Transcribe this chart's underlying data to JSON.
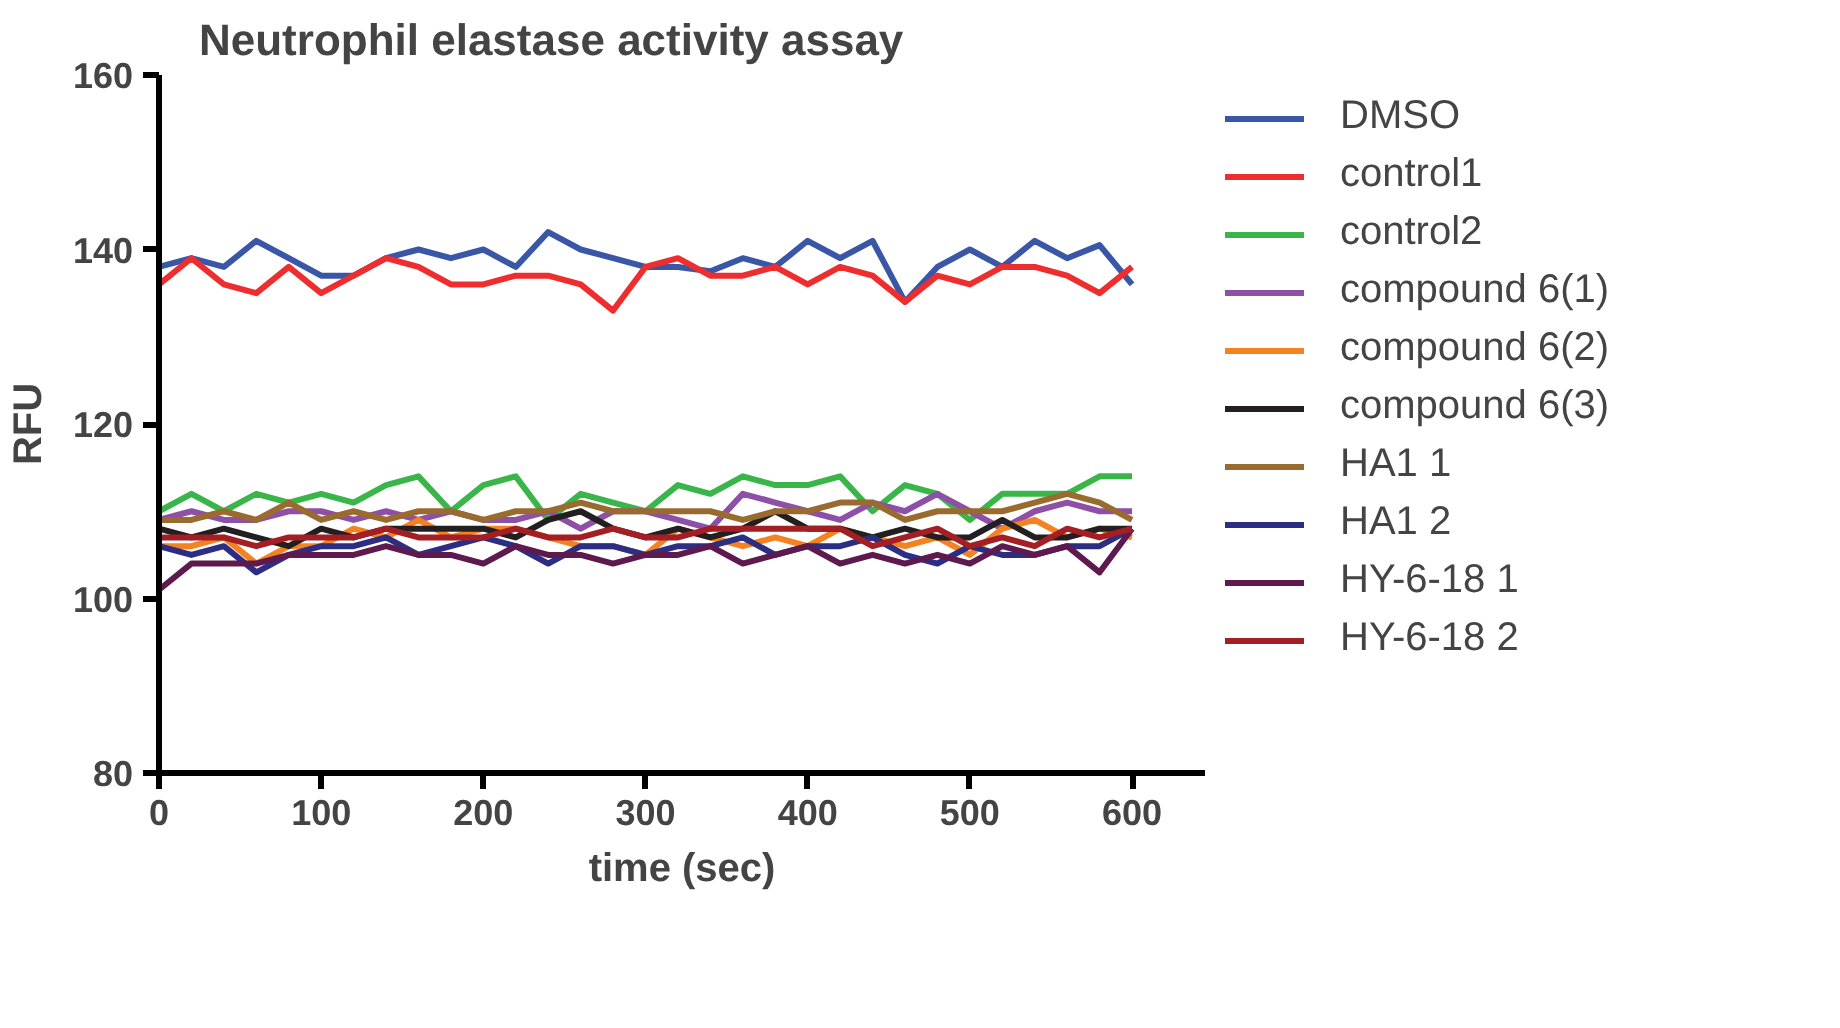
{
  "chart_data": {
    "type": "line",
    "title": "Neutrophil elastase activity assay",
    "xlabel": "time (sec)",
    "ylabel": "RFU",
    "x": [
      0,
      20,
      40,
      60,
      80,
      100,
      120,
      140,
      160,
      180,
      200,
      220,
      240,
      260,
      280,
      300,
      320,
      340,
      360,
      380,
      400,
      420,
      440,
      460,
      480,
      500,
      520,
      540,
      560,
      580,
      600
    ],
    "xlim": [
      0,
      645
    ],
    "xticks": [
      0,
      100,
      200,
      300,
      400,
      500,
      600
    ],
    "ylim": [
      80,
      160
    ],
    "yticks": [
      80,
      100,
      120,
      140,
      160
    ],
    "grid": false,
    "legend": "right",
    "marker": "none",
    "line_style": "solid",
    "series": [
      {
        "name": "DMSO",
        "color": "#3a57a7",
        "values": [
          138,
          139,
          138,
          141,
          139,
          137,
          137,
          139,
          140,
          139,
          140,
          138,
          142,
          140,
          139,
          138,
          138,
          137.5,
          139,
          138,
          141,
          139,
          141,
          134,
          138,
          140,
          138,
          141,
          139,
          140.5,
          136
        ]
      },
      {
        "name": "control1",
        "color": "#ee2e2e",
        "values": [
          136,
          139,
          136,
          135,
          138,
          135,
          137,
          139,
          138,
          136,
          136,
          137,
          137,
          136,
          133,
          138,
          139,
          137,
          137,
          138,
          136,
          138,
          137,
          134,
          137,
          136,
          138,
          138,
          137,
          135,
          138
        ]
      },
      {
        "name": "control2",
        "color": "#3ab54a",
        "values": [
          110,
          112,
          110,
          112,
          111,
          112,
          111,
          113,
          114,
          110,
          113,
          114,
          109,
          112,
          111,
          110,
          113,
          112,
          114,
          113,
          113,
          114,
          110,
          113,
          112,
          109,
          112,
          112,
          112,
          114,
          114
        ]
      },
      {
        "name": "compound 6(1)",
        "color": "#8e4fa6",
        "values": [
          109,
          110,
          109,
          109,
          110,
          110,
          109,
          110,
          109,
          110,
          109,
          109,
          110,
          108,
          110,
          110,
          109,
          108,
          112,
          111,
          110,
          109,
          111,
          110,
          112,
          110,
          108,
          110,
          111,
          110,
          110
        ]
      },
      {
        "name": "compound 6(2)",
        "color": "#f58220",
        "values": [
          106,
          106,
          107,
          104,
          106,
          106,
          108,
          107,
          109,
          107,
          108,
          108,
          107,
          106,
          106,
          105,
          108,
          107,
          106,
          107,
          106,
          108,
          107,
          106,
          107,
          105,
          108,
          109,
          107,
          108,
          107
        ]
      },
      {
        "name": "compound 6(3)",
        "color": "#231f20",
        "values": [
          108,
          107,
          108,
          107,
          106,
          108,
          107,
          108,
          108,
          108,
          108,
          107,
          109,
          110,
          108,
          107,
          108,
          107,
          108,
          110,
          108,
          108,
          107,
          108,
          107,
          107,
          109,
          107,
          107,
          108,
          108
        ]
      },
      {
        "name": "HA1 1",
        "color": "#9a6b2e",
        "values": [
          109,
          109,
          110,
          109,
          111,
          109,
          110,
          109,
          110,
          110,
          109,
          110,
          110,
          111,
          110,
          110,
          110,
          110,
          109,
          110,
          110,
          111,
          111,
          109,
          110,
          110,
          110,
          111,
          112,
          111,
          109
        ]
      },
      {
        "name": "HA1 2",
        "color": "#2b2e83",
        "values": [
          106,
          105,
          106,
          103,
          105,
          106,
          106,
          107,
          105,
          106,
          107,
          106,
          104,
          106,
          106,
          105,
          106,
          106,
          107,
          105,
          106,
          106,
          107,
          105,
          104,
          106,
          105,
          105,
          106,
          106,
          108
        ]
      },
      {
        "name": "HY-6-18 1",
        "color": "#5e1a4f",
        "values": [
          101,
          104,
          104,
          104,
          105,
          105,
          105,
          106,
          105,
          105,
          104,
          106,
          105,
          105,
          104,
          105,
          105,
          106,
          104,
          105,
          106,
          104,
          105,
          104,
          105,
          104,
          106,
          105,
          106,
          103,
          108
        ]
      },
      {
        "name": "HY-6-18 2",
        "color": "#a31f24",
        "values": [
          107,
          107,
          107,
          106,
          107,
          107,
          107,
          108,
          107,
          107,
          107,
          108,
          107,
          107,
          108,
          107,
          107,
          108,
          108,
          108,
          108,
          108,
          106,
          107,
          108,
          106,
          107,
          106,
          108,
          107,
          108
        ]
      }
    ]
  }
}
